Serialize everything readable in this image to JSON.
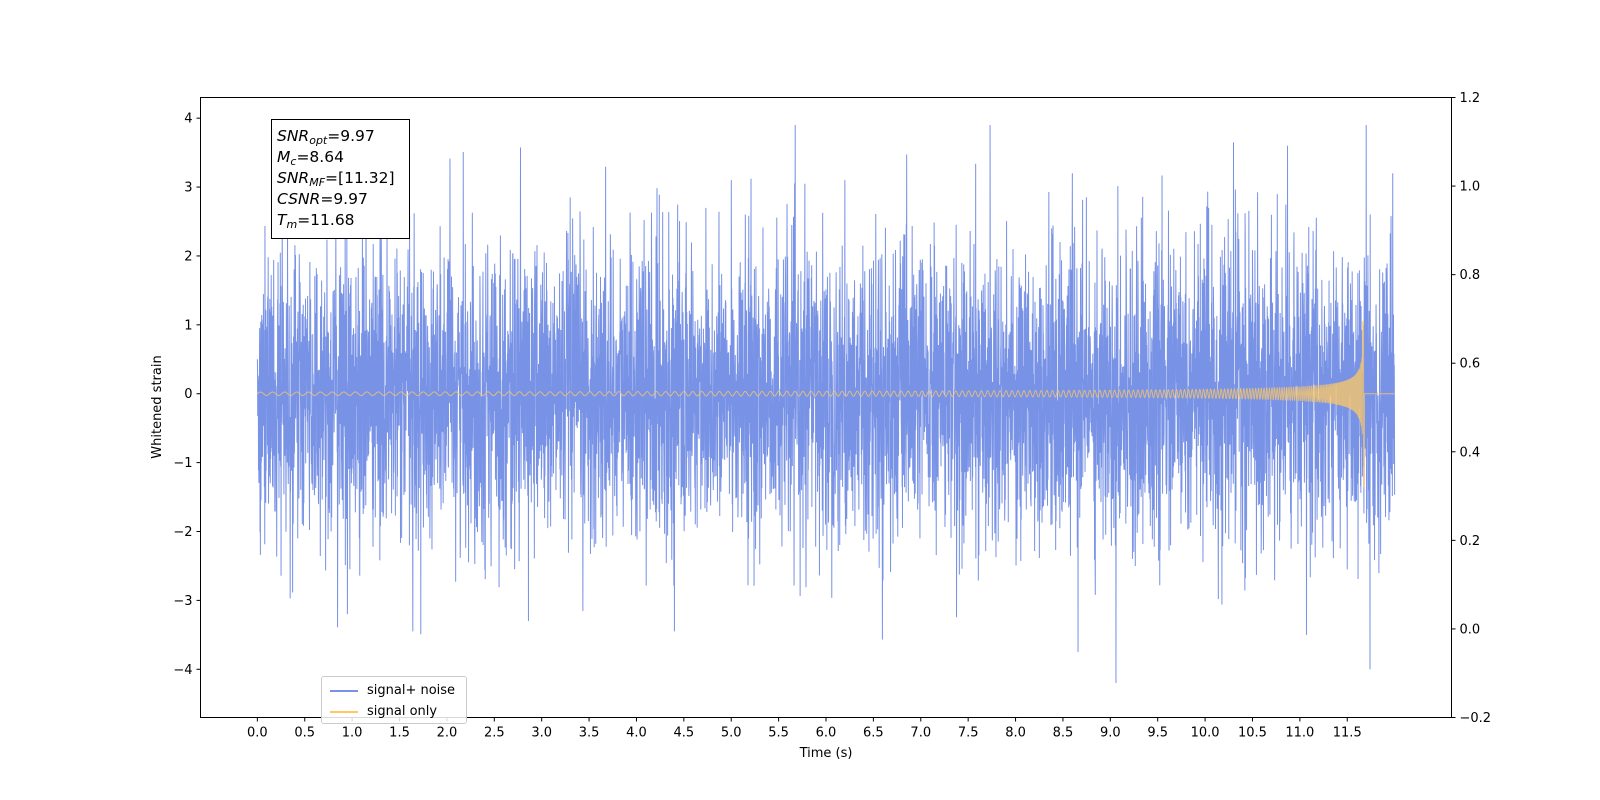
{
  "chart_data": {
    "type": "line",
    "title": "",
    "xlabel": "Time (s)",
    "ylabel": "Whitened strain",
    "xlim": [
      -0.6,
      12.6
    ],
    "ylim": [
      -4.7,
      4.3
    ],
    "y2lim": [
      -0.2,
      1.2
    ],
    "x_ticks": [
      "0.0",
      "0.5",
      "1.0",
      "1.5",
      "2.0",
      "2.5",
      "3.0",
      "3.5",
      "4.0",
      "4.5",
      "5.0",
      "5.5",
      "6.0",
      "6.5",
      "7.0",
      "7.5",
      "8.0",
      "8.5",
      "9.0",
      "9.5",
      "10.0",
      "10.5",
      "11.0",
      "11.5"
    ],
    "y_ticks": [
      "4",
      "3",
      "2",
      "1",
      "0",
      "−1",
      "−2",
      "−3",
      "−4"
    ],
    "y2_ticks": [
      "1.2",
      "1.0",
      "0.8",
      "0.6",
      "0.4",
      "0.2",
      "0.0",
      "−0.2"
    ],
    "grid": false,
    "legend_position": "lower-left",
    "series": [
      {
        "name": "signal+ noise",
        "color": "#7892e6",
        "x_range": [
          0.0,
          12.0
        ],
        "approx_envelope": {
          "typical_peak": 2.3,
          "max": 3.9,
          "min": -4.2
        },
        "notable_peaks": [
          {
            "x": 11.7,
            "y": 3.9
          },
          {
            "x": 9.06,
            "y": -4.2
          },
          {
            "x": 11.74,
            "y": -4.0
          },
          {
            "x": 5.0,
            "y": -3.8
          },
          {
            "x": 8.66,
            "y": -3.75
          },
          {
            "x": 10.87,
            "y": 3.6
          },
          {
            "x": 1.64,
            "y": -3.45
          },
          {
            "x": 4.4,
            "y": -3.45
          },
          {
            "x": 11.07,
            "y": -3.5
          },
          {
            "x": 11.98,
            "y": 3.2
          },
          {
            "x": 10.3,
            "y": 3.65
          },
          {
            "x": 0.95,
            "y": -3.2
          },
          {
            "x": 5.0,
            "y": 3.1
          },
          {
            "x": 6.2,
            "y": 3.1
          },
          {
            "x": 8.6,
            "y": 3.2
          }
        ]
      },
      {
        "name": "signal only",
        "color": "#ffc864",
        "description": "chirp; amplitude ≈ 0.03 at t=0 growing to ≈ 1.1 near t=11.68, zero after",
        "peak_time": 11.68,
        "peak_amplitude": 1.05,
        "min_amplitude": -1.35
      }
    ]
  },
  "stats_box": {
    "rows": [
      {
        "sym": "SNR",
        "sub": "opt",
        "value": "=9.97"
      },
      {
        "sym": "M",
        "sub": "c",
        "value": "=8.64"
      },
      {
        "sym": "SNR",
        "sub": "MF",
        "value": "=[11.32]"
      },
      {
        "sym": "CSNR",
        "sub": "",
        "value": "=9.97"
      },
      {
        "sym": "T",
        "sub": "m",
        "value": "=11.68"
      }
    ]
  },
  "legend": {
    "items": [
      {
        "label": "signal+ noise",
        "color": "#7892e6"
      },
      {
        "label": "signal only",
        "color": "#ffc864"
      }
    ]
  }
}
